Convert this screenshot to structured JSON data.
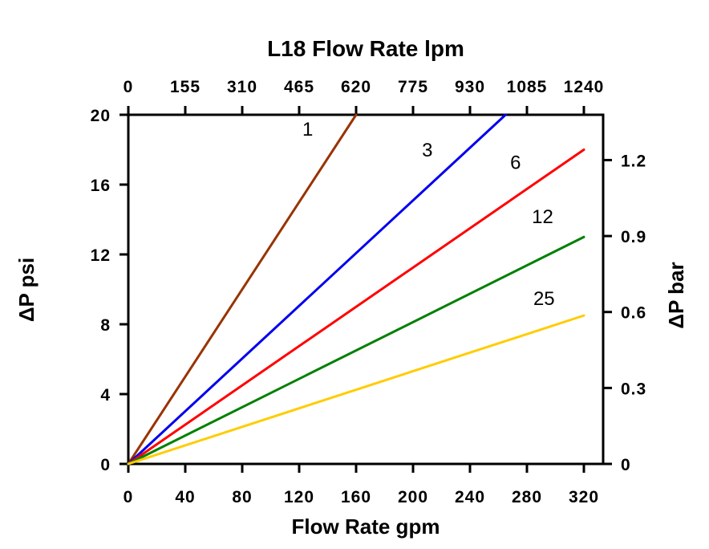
{
  "chart_data": {
    "type": "line",
    "title_top": "L18 Flow Rate lpm",
    "xlabel_bottom": "Flow Rate gpm",
    "ylabel_left": "ΔP psi",
    "ylabel_right": "ΔP bar",
    "x_bottom_ticks": [
      0,
      40,
      80,
      120,
      160,
      200,
      240,
      280,
      320
    ],
    "x_top_ticks": [
      0,
      155,
      310,
      465,
      620,
      775,
      930,
      1085,
      1240
    ],
    "y_left_ticks": [
      0,
      4,
      8,
      12,
      16,
      20
    ],
    "y_right_ticks": [
      0,
      0.3,
      0.6,
      0.9,
      1.2
    ],
    "xlim_gpm": [
      0,
      333
    ],
    "ylim_psi": [
      0,
      20
    ],
    "psi_per_bar": 14.504,
    "grid": false,
    "legend": "inline-labels",
    "axis_color": "#000000",
    "background_color": "#ffffff",
    "series": [
      {
        "name": "1",
        "color": "#993300",
        "points": [
          [
            0,
            0
          ],
          [
            160,
            20
          ]
        ],
        "label_pos": [
          126,
          18.8
        ]
      },
      {
        "name": "3",
        "color": "#0000EE",
        "points": [
          [
            0,
            0
          ],
          [
            265,
            20
          ]
        ],
        "label_pos": [
          210,
          17.6
        ]
      },
      {
        "name": "6",
        "color": "#FF0000",
        "points": [
          [
            0,
            0
          ],
          [
            320,
            18
          ]
        ],
        "label_pos": [
          272,
          16.9
        ]
      },
      {
        "name": "12",
        "color": "#008000",
        "points": [
          [
            0,
            0
          ],
          [
            320,
            13
          ]
        ],
        "label_pos": [
          291,
          13.8
        ]
      },
      {
        "name": "25",
        "color": "#FFCC00",
        "points": [
          [
            0,
            0
          ],
          [
            320,
            8.5
          ]
        ],
        "label_pos": [
          292,
          9.1
        ]
      }
    ]
  }
}
